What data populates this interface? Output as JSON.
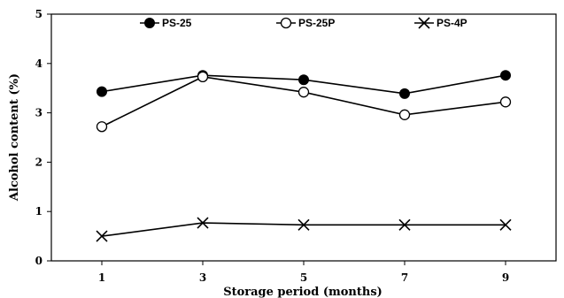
{
  "chart_data": {
    "type": "line",
    "x": [
      1,
      3,
      5,
      7,
      9
    ],
    "xticks": [
      "1",
      "3",
      "5",
      "7",
      "9"
    ],
    "yticks": [
      "0",
      "1",
      "2",
      "3",
      "4",
      "5"
    ],
    "xlabel": "Storage period (months)",
    "ylabel": "Alcohol content (%)",
    "ylim": [
      0,
      5
    ],
    "grid": false,
    "legend": "top",
    "series": [
      {
        "name": "PS-25",
        "marker": "filled-circle",
        "values": [
          3.43,
          3.76,
          3.67,
          3.39,
          3.76
        ]
      },
      {
        "name": "PS-25P",
        "marker": "open-circle",
        "values": [
          2.72,
          3.73,
          3.42,
          2.96,
          3.22
        ]
      },
      {
        "name": "PS-4P",
        "marker": "x-cross",
        "values": [
          0.5,
          0.77,
          0.73,
          0.73,
          0.73
        ]
      }
    ]
  }
}
